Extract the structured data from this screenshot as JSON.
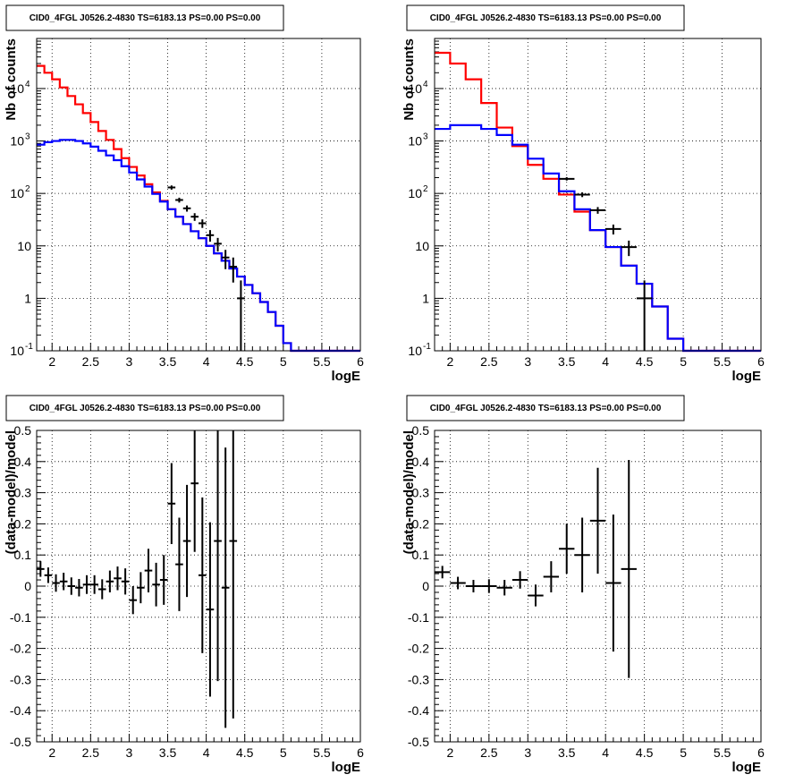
{
  "colors": {
    "data": "#000000",
    "total_model": "#ff0000",
    "component_model": "#0000ff",
    "frame": "#000000",
    "grid": "#000000"
  },
  "chart_data": [
    {
      "id": "top-left",
      "type": "line",
      "title": "CID0_4FGL J0526.2-4830 TS=6183.13 PS=0.00 PS=0.00",
      "xlabel": "logE",
      "ylabel": "Nb of counts",
      "xlim": [
        1.8,
        6.0
      ],
      "ylim": [
        0.1,
        90000
      ],
      "yscale": "log",
      "grid": true,
      "xticks": [
        "2",
        "2.5",
        "3",
        "3.5",
        "4",
        "4.5",
        "5",
        "5.5",
        "6"
      ],
      "yticks": [
        "10-1",
        "1",
        "10",
        "102",
        "103",
        "104"
      ],
      "bin_width": 0.1,
      "series": [
        {
          "kind": "step",
          "role": "total",
          "x": [
            1.8,
            1.9,
            2.0,
            2.1,
            2.2,
            2.3,
            2.4,
            2.5,
            2.6,
            2.7,
            2.8,
            2.9,
            3.0,
            3.1,
            3.2,
            3.3,
            3.4,
            3.5,
            3.6,
            3.7,
            3.8,
            3.9,
            4.0,
            4.1,
            4.2,
            4.3,
            4.4,
            4.5,
            4.6,
            4.7,
            4.8,
            4.9,
            5.0,
            5.1,
            5.2,
            5.3,
            5.4,
            5.5,
            5.6,
            5.7,
            5.8,
            5.9
          ],
          "y": [
            27000,
            20000,
            15000,
            10500,
            7200,
            5000,
            3400,
            2300,
            1550,
            1050,
            700,
            470,
            320,
            220,
            150,
            105,
            72,
            50,
            36,
            26,
            19,
            14,
            10,
            7.2,
            5.2,
            3.7,
            2.6,
            1.8,
            1.25,
            0.85,
            0.55,
            0.3,
            0.14,
            0.1,
            0.1,
            0.1,
            0.1,
            0.1,
            0.1,
            0.1,
            0.1,
            0.1
          ]
        },
        {
          "kind": "step",
          "role": "component",
          "x": [
            1.8,
            1.9,
            2.0,
            2.1,
            2.2,
            2.3,
            2.4,
            2.5,
            2.6,
            2.7,
            2.8,
            2.9,
            3.0,
            3.1,
            3.2,
            3.3,
            3.4,
            3.5,
            3.6,
            3.7,
            3.8,
            3.9,
            4.0,
            4.1,
            4.2,
            4.3,
            4.4,
            4.5,
            4.6,
            4.7,
            4.8,
            4.9,
            5.0,
            5.1,
            5.2,
            5.3,
            5.4,
            5.5,
            5.6,
            5.7,
            5.8,
            5.9
          ],
          "y": [
            850,
            950,
            1000,
            1050,
            1050,
            1000,
            900,
            780,
            650,
            530,
            430,
            330,
            250,
            185,
            135,
            98,
            70,
            50,
            36,
            26,
            19,
            14,
            10,
            7.2,
            5.2,
            3.7,
            2.6,
            1.8,
            1.25,
            0.85,
            0.55,
            0.3,
            0.14,
            0.1,
            0.1,
            0.1,
            0.1,
            0.1,
            0.1,
            0.1,
            0.1,
            0.1
          ]
        },
        {
          "kind": "errorbar",
          "role": "data",
          "x": [
            3.55,
            3.65,
            3.75,
            3.85,
            3.95,
            4.05,
            4.15,
            4.25,
            4.35,
            4.45
          ],
          "y": [
            130,
            75,
            52,
            36,
            27,
            16,
            11,
            6,
            4,
            1
          ],
          "yerr_low": [
            12,
            8,
            7,
            6,
            5,
            4,
            3.2,
            2.4,
            2,
            0.99
          ],
          "yerr_high": [
            12,
            8,
            7,
            6,
            5,
            4,
            3.2,
            2.4,
            2,
            1.2
          ]
        }
      ]
    },
    {
      "id": "top-right",
      "type": "line",
      "title": "CID0_4FGL J0526.2-4830 TS=6183.13 PS=0.00 PS=0.00",
      "xlabel": "logE",
      "ylabel": "Nb of counts",
      "xlim": [
        1.8,
        6.0
      ],
      "ylim": [
        0.1,
        90000
      ],
      "yscale": "log",
      "grid": true,
      "xticks": [
        "2",
        "2.5",
        "3",
        "3.5",
        "4",
        "4.5",
        "5",
        "5.5",
        "6"
      ],
      "yticks": [
        "10-1",
        "1",
        "10",
        "102",
        "103",
        "104"
      ],
      "bin_width": 0.2,
      "series": [
        {
          "kind": "step",
          "role": "total",
          "x": [
            1.8,
            2.0,
            2.2,
            2.4,
            2.6,
            2.8,
            3.0,
            3.2,
            3.4,
            3.6,
            3.8,
            4.0,
            4.2,
            4.4,
            4.6,
            4.8,
            5.0,
            5.2,
            5.4,
            5.6,
            5.8
          ],
          "y": [
            48000,
            30000,
            15000,
            5300,
            1800,
            800,
            350,
            190,
            95,
            45,
            20,
            9.5,
            4.2,
            1.9,
            0.7,
            0.17,
            0.1,
            0.1,
            0.1,
            0.1,
            0.1
          ]
        },
        {
          "kind": "step",
          "role": "component",
          "x": [
            1.8,
            2.0,
            2.2,
            2.4,
            2.6,
            2.8,
            3.0,
            3.2,
            3.4,
            3.6,
            3.8,
            4.0,
            4.2,
            4.4,
            4.6,
            4.8,
            5.0,
            5.2,
            5.4,
            5.6,
            5.8
          ],
          "y": [
            1700,
            2000,
            2000,
            1700,
            1300,
            850,
            460,
            240,
            110,
            50,
            20,
            9.5,
            4.2,
            1.9,
            0.7,
            0.17,
            0.1,
            0.1,
            0.1,
            0.1,
            0.1
          ]
        },
        {
          "kind": "errorbar",
          "role": "data",
          "x": [
            3.5,
            3.7,
            3.9,
            4.1,
            4.3,
            4.5
          ],
          "y": [
            190,
            95,
            48,
            21,
            9.5,
            1
          ],
          "yerr_low": [
            14,
            10,
            7,
            4.5,
            3.1,
            0.99
          ],
          "yerr_high": [
            14,
            10,
            7,
            4.5,
            3.1,
            1.2
          ]
        }
      ]
    },
    {
      "id": "bottom-left",
      "type": "scatter",
      "title": "CID0_4FGL J0526.2-4830 TS=6183.13 PS=0.00 PS=0.00",
      "xlabel": "logE",
      "ylabel": "(data-model)/model",
      "xlim": [
        1.8,
        6.0
      ],
      "ylim": [
        -0.5,
        0.5
      ],
      "yscale": "linear",
      "grid": true,
      "xticks": [
        "2",
        "2.5",
        "3",
        "3.5",
        "4",
        "4.5",
        "5",
        "5.5",
        "6"
      ],
      "yticks": [
        "-0.5",
        "-0.4",
        "-0.3",
        "-0.2",
        "-0.1",
        "0",
        "0.1",
        "0.2",
        "0.3",
        "0.4",
        "0.5"
      ],
      "bin_width": 0.1,
      "series": [
        {
          "kind": "errorbar",
          "role": "data",
          "x": [
            1.85,
            1.95,
            2.05,
            2.15,
            2.25,
            2.35,
            2.45,
            2.55,
            2.65,
            2.75,
            2.85,
            2.95,
            3.05,
            3.15,
            3.25,
            3.35,
            3.45,
            3.55,
            3.65,
            3.75,
            3.85,
            3.95,
            4.05,
            4.15,
            4.25,
            4.35
          ],
          "y": [
            0.055,
            0.035,
            0.01,
            0.015,
            0.0,
            -0.005,
            0.005,
            0.005,
            -0.01,
            0.015,
            0.025,
            0.015,
            -0.045,
            -0.005,
            0.05,
            0.005,
            0.02,
            0.265,
            0.07,
            0.145,
            0.33,
            0.035,
            -0.075,
            0.145,
            -0.005,
            0.145
          ],
          "yerr": [
            0.025,
            0.025,
            0.028,
            0.028,
            0.028,
            0.028,
            0.03,
            0.03,
            0.032,
            0.035,
            0.038,
            0.042,
            0.045,
            0.05,
            0.07,
            0.07,
            0.08,
            0.13,
            0.15,
            0.18,
            0.22,
            0.25,
            0.28,
            0.45,
            0.45,
            0.57
          ]
        }
      ]
    },
    {
      "id": "bottom-right",
      "type": "scatter",
      "title": "CID0_4FGL J0526.2-4830 TS=6183.13 PS=0.00 PS=0.00",
      "xlabel": "logE",
      "ylabel": "(data-model)/model",
      "xlim": [
        1.8,
        6.0
      ],
      "ylim": [
        -0.5,
        0.5
      ],
      "yscale": "linear",
      "grid": true,
      "xticks": [
        "2",
        "2.5",
        "3",
        "3.5",
        "4",
        "4.5",
        "5",
        "5.5",
        "6"
      ],
      "yticks": [
        "-0.5",
        "-0.4",
        "-0.3",
        "-0.2",
        "-0.1",
        "0",
        "0.1",
        "0.2",
        "0.3",
        "0.4",
        "0.5"
      ],
      "bin_width": 0.2,
      "series": [
        {
          "kind": "errorbar",
          "role": "data",
          "x": [
            1.9,
            2.1,
            2.3,
            2.5,
            2.7,
            2.9,
            3.1,
            3.3,
            3.5,
            3.7,
            3.9,
            4.1,
            4.3
          ],
          "y": [
            0.045,
            0.01,
            0.0,
            0.0,
            -0.005,
            0.02,
            -0.03,
            0.03,
            0.12,
            0.1,
            0.21,
            0.01,
            0.055
          ],
          "yerr": [
            0.02,
            0.02,
            0.02,
            0.022,
            0.025,
            0.028,
            0.035,
            0.05,
            0.08,
            0.12,
            0.17,
            0.22,
            0.35
          ]
        }
      ]
    }
  ]
}
